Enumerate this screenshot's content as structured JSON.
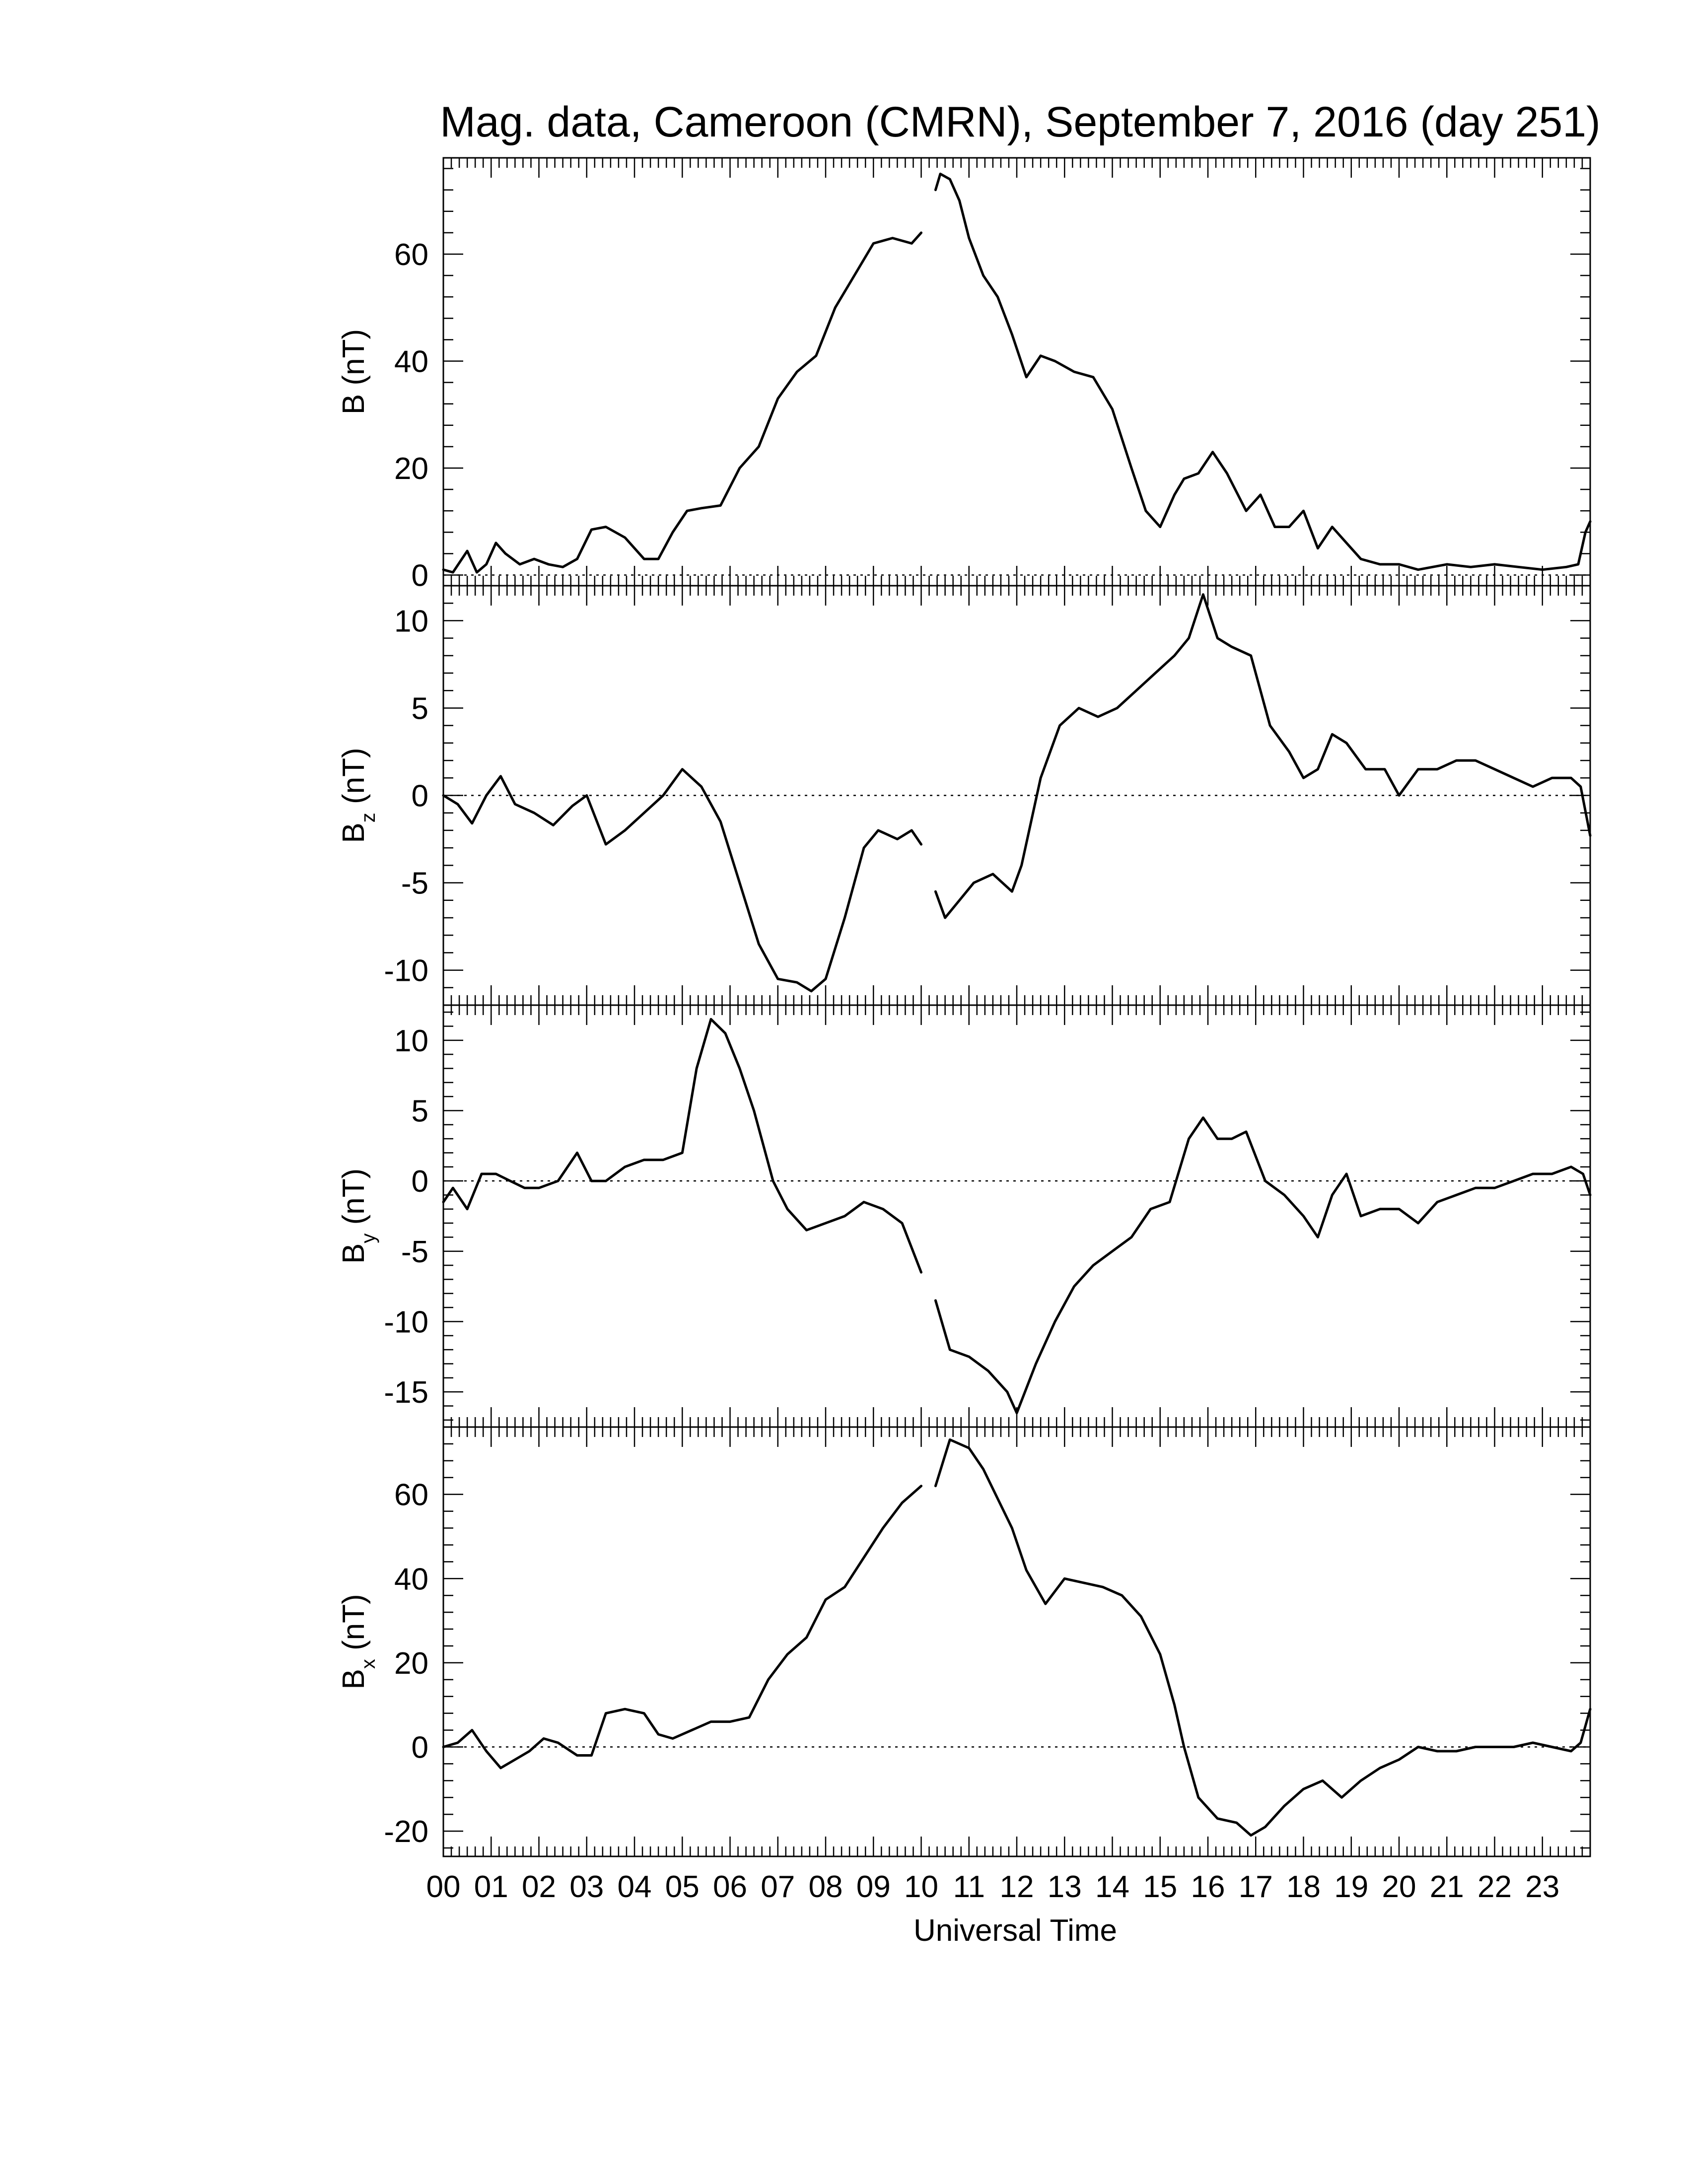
{
  "title": "Mag. data, Cameroon (CMRN), September 7, 2016 (day 251)",
  "xlabel": "Universal Time",
  "x_tick_labels": [
    "00",
    "01",
    "02",
    "03",
    "04",
    "05",
    "06",
    "07",
    "08",
    "09",
    "10",
    "11",
    "12",
    "13",
    "14",
    "15",
    "16",
    "17",
    "18",
    "19",
    "20",
    "21",
    "22",
    "23"
  ],
  "colors": {
    "trace": "#000000",
    "zero_line": "#000000",
    "background": "#ffffff"
  },
  "chart_data": [
    {
      "type": "line",
      "ylabel": "B (nT)",
      "ylabel_main": "B",
      "ylabel_sub": "",
      "ylabel_unit": " (nT)",
      "xlim": [
        0,
        24
      ],
      "ylim": [
        -2,
        78
      ],
      "yticks": [
        0,
        20,
        40,
        60
      ],
      "ytick_labels": [
        "0",
        "20",
        "40",
        "60"
      ],
      "zero_line": true,
      "gap": [
        10.05,
        10.3
      ],
      "x": [
        0,
        0.2,
        0.5,
        0.7,
        0.9,
        1.1,
        1.3,
        1.6,
        1.9,
        2.2,
        2.5,
        2.8,
        3.1,
        3.4,
        3.8,
        4.2,
        4.5,
        4.8,
        5.1,
        5.4,
        5.8,
        6.2,
        6.6,
        7.0,
        7.4,
        7.8,
        8.2,
        8.6,
        9.0,
        9.4,
        9.8,
        10.0,
        10.3,
        10.4,
        10.6,
        10.8,
        11.0,
        11.3,
        11.6,
        11.9,
        12.2,
        12.5,
        12.8,
        13.2,
        13.6,
        14.0,
        14.4,
        14.7,
        15.0,
        15.3,
        15.5,
        15.8,
        16.1,
        16.4,
        16.8,
        17.1,
        17.4,
        17.7,
        18.0,
        18.3,
        18.6,
        18.9,
        19.2,
        19.6,
        20.0,
        20.4,
        21.0,
        21.5,
        22.0,
        22.5,
        23.0,
        23.5,
        23.75,
        23.9,
        24.0
      ],
      "values": [
        1,
        0.5,
        4.5,
        0.5,
        2,
        6,
        4,
        2,
        3,
        2,
        1.5,
        3,
        8.5,
        9,
        7,
        3,
        3,
        8,
        12,
        12.5,
        13,
        20,
        24,
        33,
        38,
        41,
        50,
        56,
        62,
        63,
        62,
        64,
        72,
        75,
        74,
        70,
        63,
        56,
        52,
        45,
        37,
        41,
        40,
        38,
        37,
        31,
        20,
        12,
        9,
        15,
        18,
        19,
        23,
        19,
        12,
        15,
        9,
        9,
        12,
        5,
        9,
        6,
        3,
        2,
        2,
        1,
        2,
        1.5,
        2,
        1.5,
        1,
        1.5,
        2,
        8,
        10
      ]
    },
    {
      "type": "line",
      "ylabel": "Bz (nT)",
      "ylabel_main": "B",
      "ylabel_sub": "z",
      "ylabel_unit": " (nT)",
      "xlim": [
        0,
        24
      ],
      "ylim": [
        -12,
        12
      ],
      "yticks": [
        -10,
        -5,
        0,
        5,
        10
      ],
      "ytick_labels": [
        "-10",
        "-5",
        "0",
        "5",
        "10"
      ],
      "zero_line": true,
      "gap": [
        10.05,
        10.3
      ],
      "x": [
        0,
        0.3,
        0.6,
        0.9,
        1.2,
        1.5,
        1.9,
        2.3,
        2.7,
        3.0,
        3.4,
        3.8,
        4.2,
        4.6,
        5.0,
        5.4,
        5.8,
        6.2,
        6.6,
        7.0,
        7.4,
        7.7,
        8.0,
        8.4,
        8.8,
        9.1,
        9.5,
        9.8,
        10.0,
        10.3,
        10.5,
        10.8,
        11.1,
        11.5,
        11.9,
        12.1,
        12.5,
        12.9,
        13.3,
        13.7,
        14.1,
        14.5,
        14.9,
        15.3,
        15.6,
        15.9,
        16.2,
        16.5,
        16.9,
        17.3,
        17.7,
        18.0,
        18.3,
        18.6,
        18.9,
        19.3,
        19.7,
        20.0,
        20.4,
        20.8,
        21.2,
        21.6,
        22.0,
        22.4,
        22.8,
        23.2,
        23.6,
        23.8,
        24.0
      ],
      "values": [
        0,
        -0.5,
        -1.6,
        0,
        1.1,
        -0.5,
        -1,
        -1.7,
        -0.6,
        0,
        -2.8,
        -2,
        -1,
        0,
        1.5,
        0.5,
        -1.5,
        -5,
        -8.5,
        -10.5,
        -10.7,
        -11.2,
        -10.5,
        -7,
        -3,
        -2,
        -2.5,
        -2,
        -2.8,
        -5.5,
        -7,
        -6,
        -5,
        -4.5,
        -5.5,
        -4,
        1,
        4,
        5,
        4.5,
        5,
        6,
        7,
        8,
        9,
        11.5,
        9,
        8.5,
        8,
        4,
        2.5,
        1,
        1.5,
        3.5,
        3,
        1.5,
        1.5,
        0,
        1.5,
        1.5,
        2,
        2,
        1.5,
        1,
        0.5,
        1,
        1,
        0.5,
        -2.3
      ]
    },
    {
      "type": "line",
      "ylabel": "By (nT)",
      "ylabel_main": "B",
      "ylabel_sub": "y",
      "ylabel_unit": " (nT)",
      "xlim": [
        0,
        24
      ],
      "ylim": [
        -17.5,
        12.5
      ],
      "yticks": [
        -15,
        -10,
        -5,
        0,
        5,
        10
      ],
      "ytick_labels": [
        "-15",
        "-10",
        "-5",
        "0",
        "5",
        "10"
      ],
      "zero_line": true,
      "gap": [
        10.05,
        10.3
      ],
      "x": [
        0,
        0.2,
        0.5,
        0.8,
        1.1,
        1.4,
        1.7,
        2.0,
        2.4,
        2.8,
        3.1,
        3.4,
        3.8,
        4.2,
        4.6,
        5.0,
        5.3,
        5.6,
        5.9,
        6.2,
        6.5,
        6.9,
        7.2,
        7.6,
        8.0,
        8.4,
        8.8,
        9.2,
        9.6,
        10.0,
        10.3,
        10.6,
        11.0,
        11.4,
        11.8,
        12.0,
        12.4,
        12.8,
        13.2,
        13.6,
        14.0,
        14.4,
        14.8,
        15.2,
        15.6,
        15.9,
        16.2,
        16.5,
        16.8,
        17.2,
        17.6,
        18.0,
        18.3,
        18.6,
        18.9,
        19.2,
        19.6,
        20.0,
        20.4,
        20.8,
        21.2,
        21.6,
        22.0,
        22.4,
        22.8,
        23.2,
        23.6,
        23.85,
        24.0
      ],
      "values": [
        -1.5,
        -0.5,
        -2,
        0.5,
        0.5,
        0,
        -0.5,
        -0.5,
        0,
        2,
        0,
        0,
        1,
        1.5,
        1.5,
        2,
        8,
        11.5,
        10.5,
        8,
        5,
        0,
        -2,
        -3.5,
        -3,
        -2.5,
        -1.5,
        -2,
        -3,
        -6.5,
        -8.5,
        -12,
        -12.5,
        -13.5,
        -15,
        -16.5,
        -13,
        -10,
        -7.5,
        -6,
        -5,
        -4,
        -2,
        -1.5,
        3,
        4.5,
        3,
        3,
        3.5,
        0,
        -1,
        -2.5,
        -4,
        -1,
        0.5,
        -2.5,
        -2,
        -2,
        -3,
        -1.5,
        -1,
        -0.5,
        -0.5,
        0,
        0.5,
        0.5,
        1,
        0.5,
        -1
      ]
    },
    {
      "type": "line",
      "ylabel": "Bx (nT)",
      "ylabel_main": "B",
      "ylabel_sub": "x",
      "ylabel_unit": " (nT)",
      "xlim": [
        0,
        24
      ],
      "ylim": [
        -26,
        76
      ],
      "yticks": [
        -20,
        0,
        20,
        40,
        60
      ],
      "ytick_labels": [
        "-20",
        "0",
        "20",
        "40",
        "60"
      ],
      "zero_line": true,
      "gap": [
        10.05,
        10.3
      ],
      "x": [
        0,
        0.3,
        0.6,
        0.9,
        1.2,
        1.5,
        1.8,
        2.1,
        2.4,
        2.8,
        3.1,
        3.4,
        3.8,
        4.2,
        4.5,
        4.8,
        5.2,
        5.6,
        6.0,
        6.4,
        6.8,
        7.2,
        7.6,
        8.0,
        8.4,
        8.8,
        9.2,
        9.6,
        10.0,
        10.3,
        10.6,
        11.0,
        11.3,
        11.6,
        11.9,
        12.2,
        12.6,
        13.0,
        13.4,
        13.8,
        14.2,
        14.6,
        15.0,
        15.3,
        15.5,
        15.8,
        16.2,
        16.6,
        16.9,
        17.2,
        17.6,
        18.0,
        18.4,
        18.8,
        19.2,
        19.6,
        20.0,
        20.4,
        20.8,
        21.2,
        21.6,
        22.0,
        22.4,
        22.8,
        23.2,
        23.6,
        23.8,
        24.0
      ],
      "values": [
        0,
        1,
        4,
        -1,
        -5,
        -3,
        -1,
        2,
        1,
        -2,
        -2,
        8,
        9,
        8,
        3,
        2,
        4,
        6,
        6,
        7,
        16,
        22,
        26,
        35,
        38,
        45,
        52,
        58,
        62,
        62,
        73,
        71,
        66,
        59,
        52,
        42,
        34,
        40,
        39,
        38,
        36,
        31,
        22,
        10,
        0,
        -12,
        -17,
        -18,
        -21,
        -19,
        -14,
        -10,
        -8,
        -12,
        -8,
        -5,
        -3,
        0,
        -1,
        -1,
        0,
        0,
        0,
        1,
        0,
        -1,
        1,
        9
      ]
    }
  ]
}
